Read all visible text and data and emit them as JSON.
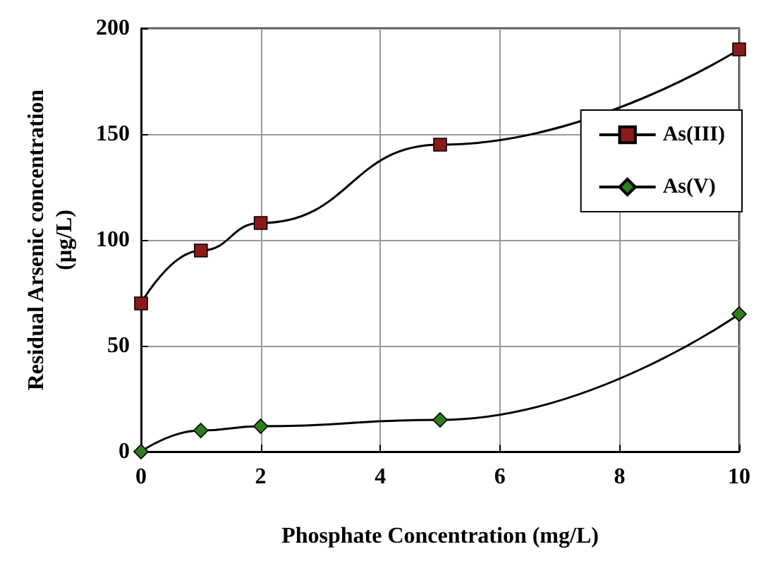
{
  "chart_data": {
    "type": "line",
    "xlabel": "Phosphate Concentration (mg/L)",
    "ylabel": "Residual Arsenic concentration\n(µg/L)",
    "x": [
      0,
      1,
      2,
      5,
      10
    ],
    "series": [
      {
        "name": "As(III)",
        "color": "#8b1a1a",
        "marker": "square",
        "values": [
          70,
          95,
          108,
          145,
          190
        ]
      },
      {
        "name": "As(V)",
        "color": "#2e7d1e",
        "marker": "diamond",
        "values": [
          0,
          10,
          12,
          15,
          65
        ]
      }
    ],
    "xlim": [
      0,
      10
    ],
    "xticks": [
      0,
      2,
      4,
      6,
      8,
      10
    ],
    "ylim": [
      0,
      200
    ],
    "yticks": [
      0,
      50,
      100,
      150,
      200
    ],
    "grid": true,
    "legend": "right"
  }
}
